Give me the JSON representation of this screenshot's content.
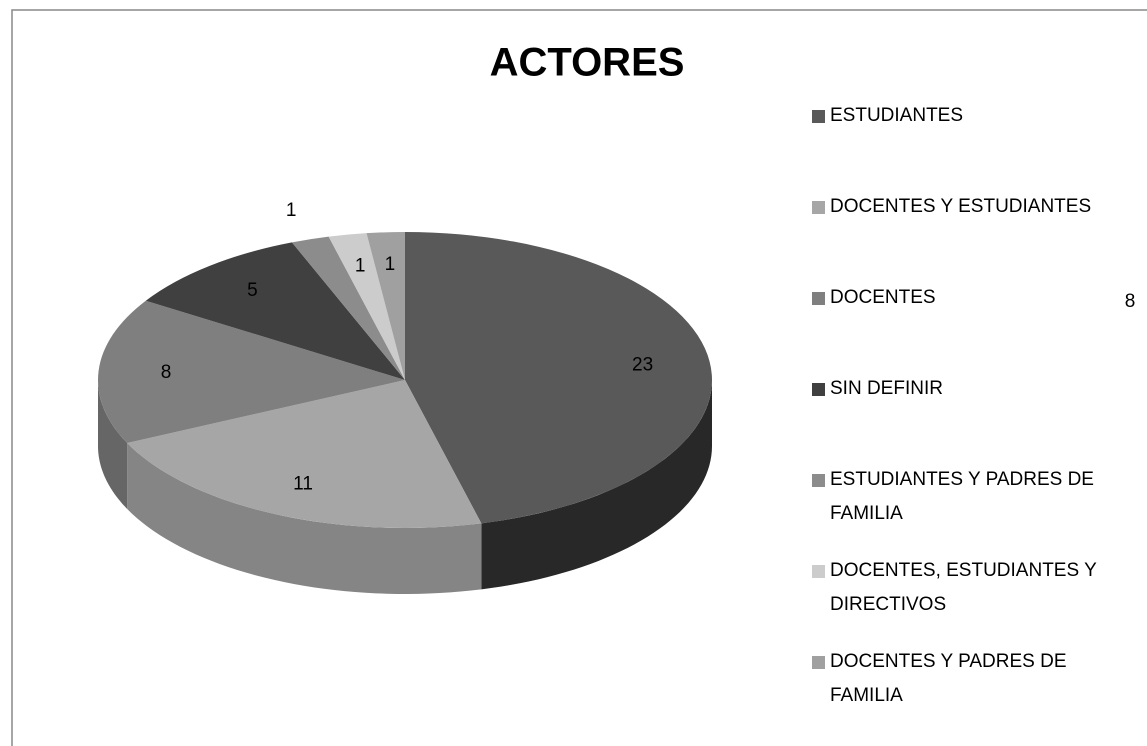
{
  "chart_data": {
    "type": "pie",
    "title": "ACTORES",
    "categories": [
      "ESTUDIANTES",
      "DOCENTES Y ESTUDIANTES",
      "DOCENTES",
      "SIN DEFINIR",
      "ESTUDIANTES Y PADRES DE FAMILIA",
      "DOCENTES, ESTUDIANTES Y DIRECTIVOS",
      "DOCENTES Y PADRES DE FAMILIA"
    ],
    "values": [
      23,
      11,
      8,
      5,
      1,
      1,
      1
    ],
    "colors": [
      "#595959",
      "#a6a6a6",
      "#7f7f7f",
      "#404040",
      "#8c8c8c",
      "#cccccc",
      "#a0a0a0"
    ],
    "legend": "right",
    "annotation": "8"
  }
}
